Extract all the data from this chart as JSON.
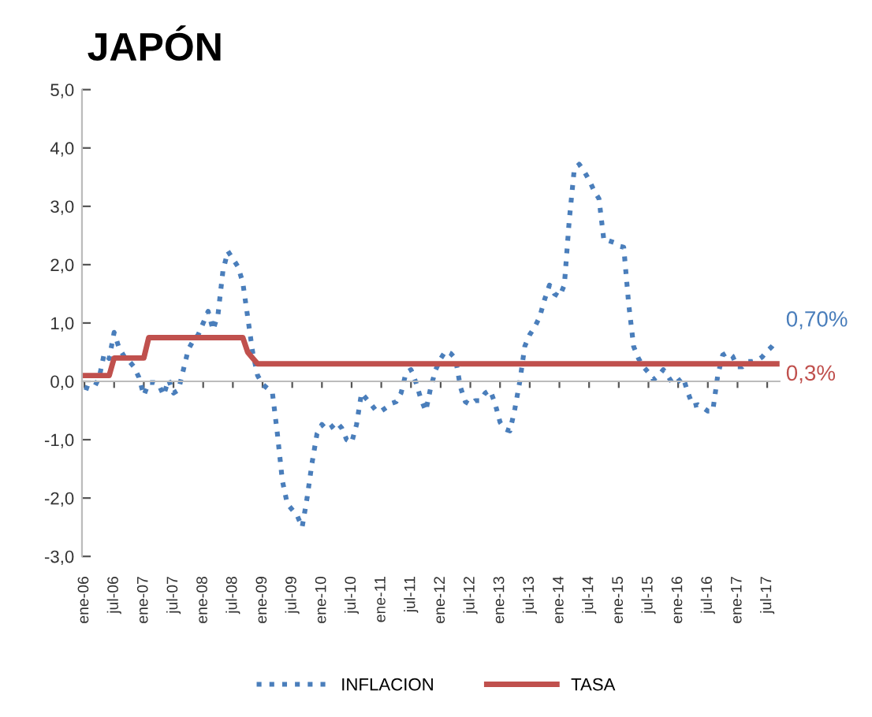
{
  "chart_data": {
    "type": "line",
    "title": "JAPÓN",
    "categories": [
      "ene-06",
      null,
      null,
      null,
      null,
      null,
      "jul-06",
      null,
      null,
      null,
      null,
      null,
      "ene-07",
      null,
      null,
      null,
      null,
      null,
      "jul-07",
      null,
      null,
      null,
      null,
      null,
      "ene-08",
      null,
      null,
      null,
      null,
      null,
      "jul-08",
      null,
      null,
      null,
      null,
      null,
      "ene-09",
      null,
      null,
      null,
      null,
      null,
      "jul-09",
      null,
      null,
      null,
      null,
      null,
      "ene-10",
      null,
      null,
      null,
      null,
      null,
      "jul-10",
      null,
      null,
      null,
      null,
      null,
      "ene-11",
      null,
      null,
      null,
      null,
      null,
      "jul-11",
      null,
      null,
      null,
      null,
      null,
      "ene-12",
      null,
      null,
      null,
      null,
      null,
      "jul-12",
      null,
      null,
      null,
      null,
      null,
      "ene-13",
      null,
      null,
      null,
      null,
      null,
      "jul-13",
      null,
      null,
      null,
      null,
      null,
      "ene-14",
      null,
      null,
      null,
      null,
      null,
      "jul-14",
      null,
      null,
      null,
      null,
      null,
      "ene-15",
      null,
      null,
      null,
      null,
      null,
      "jul-15",
      null,
      null,
      null,
      null,
      null,
      "ene-16",
      null,
      null,
      null,
      null,
      null,
      "jul-16",
      null,
      null,
      null,
      null,
      null,
      "ene-17",
      null,
      null,
      null,
      null,
      null,
      "jul-17",
      null,
      null
    ],
    "series": [
      {
        "name": "INFLACION",
        "color": "#4a7ebb",
        "line_style": "dotted",
        "value_labels": [
          null,
          null,
          null,
          null,
          null,
          null,
          null,
          null,
          null,
          null,
          null,
          null,
          null,
          null,
          null,
          null,
          null,
          null,
          null,
          null,
          null,
          null,
          null,
          null,
          null,
          null,
          null,
          null,
          null,
          null,
          null,
          null,
          null,
          null,
          null,
          null,
          null,
          null,
          null,
          null,
          null,
          null,
          null,
          null,
          null,
          null,
          null,
          null,
          null,
          null,
          null,
          null,
          null,
          null,
          null,
          null,
          null,
          null,
          null,
          null,
          null,
          null,
          null,
          null,
          null,
          null,
          null,
          null,
          null,
          null,
          null,
          null,
          null,
          null,
          null,
          null,
          null,
          null,
          null,
          null,
          null,
          null,
          null,
          null,
          null,
          null,
          null,
          null,
          null,
          null,
          null,
          null,
          null,
          null,
          null,
          null,
          null,
          null,
          null,
          null,
          null,
          null,
          null,
          null,
          null,
          null,
          null,
          null,
          null,
          null,
          null,
          null,
          null,
          null,
          null,
          null,
          null,
          null,
          null,
          null,
          null,
          null,
          null,
          null,
          null,
          null,
          null,
          null,
          null,
          null,
          null,
          null,
          null,
          null,
          null,
          null,
          null,
          null,
          null,
          null,
          "0,70%"
        ],
        "values": [
          -0.1,
          -0.13,
          -0.1,
          0.07,
          0.48,
          0.39,
          0.84,
          0.57,
          0.43,
          0.35,
          0.25,
          0.07,
          -0.24,
          -0.02,
          -0.02,
          -0.05,
          -0.24,
          0.03,
          -0.2,
          -0.15,
          0.2,
          0.55,
          0.7,
          0.8,
          1.0,
          1.2,
          0.88,
          1.15,
          1.9,
          2.23,
          2.1,
          1.97,
          1.7,
          1.1,
          0.5,
          0.1,
          -0.05,
          -0.12,
          -0.2,
          -0.9,
          -1.7,
          -2.1,
          -2.2,
          -2.3,
          -2.5,
          -2.0,
          -1.4,
          -0.9,
          -0.74,
          -0.83,
          -0.78,
          -0.7,
          -0.8,
          -1.0,
          -1.05,
          -0.74,
          -0.2,
          -0.3,
          -0.4,
          -0.51,
          -0.51,
          -0.45,
          -0.38,
          -0.35,
          -0.2,
          0.15,
          0.2,
          -0.02,
          -0.3,
          -0.51,
          -0.1,
          0.2,
          0.39,
          0.52,
          0.48,
          0.39,
          -0.1,
          -0.35,
          -0.4,
          -0.33,
          -0.33,
          -0.2,
          -0.15,
          -0.38,
          -0.7,
          -0.82,
          -0.85,
          -0.47,
          0.0,
          0.6,
          0.8,
          0.93,
          1.1,
          1.4,
          1.65,
          1.5,
          1.45,
          1.65,
          2.77,
          3.63,
          3.72,
          3.6,
          3.45,
          3.27,
          3.13,
          2.41,
          2.41,
          2.38,
          2.32,
          2.3,
          1.33,
          0.6,
          0.39,
          0.25,
          0.15,
          0.03,
          0.1,
          0.2,
          0.08,
          -0.05,
          0.0,
          0.07,
          -0.2,
          -0.42,
          -0.4,
          -0.45,
          -0.51,
          -0.51,
          0.1,
          0.45,
          0.5,
          0.43,
          0.25,
          0.25,
          0.34,
          0.34,
          0.36,
          0.42,
          0.52,
          0.6,
          0.7
        ]
      },
      {
        "name": "TASA",
        "color": "#c0504d",
        "line_style": "solid",
        "value_labels": [
          null,
          null,
          null,
          null,
          null,
          null,
          null,
          null,
          null,
          null,
          null,
          null,
          null,
          null,
          null,
          null,
          null,
          null,
          null,
          null,
          null,
          null,
          null,
          null,
          null,
          null,
          null,
          null,
          null,
          null,
          null,
          null,
          null,
          null,
          null,
          null,
          null,
          null,
          null,
          null,
          null,
          null,
          null,
          null,
          null,
          null,
          null,
          null,
          null,
          null,
          null,
          null,
          null,
          null,
          null,
          null,
          null,
          null,
          null,
          null,
          null,
          null,
          null,
          null,
          null,
          null,
          null,
          null,
          null,
          null,
          null,
          null,
          null,
          null,
          null,
          null,
          null,
          null,
          null,
          null,
          null,
          null,
          null,
          null,
          null,
          null,
          null,
          null,
          null,
          null,
          null,
          null,
          null,
          null,
          null,
          null,
          null,
          null,
          null,
          null,
          null,
          null,
          null,
          null,
          null,
          null,
          null,
          null,
          null,
          null,
          null,
          null,
          null,
          null,
          null,
          null,
          null,
          null,
          null,
          null,
          null,
          null,
          null,
          null,
          null,
          null,
          null,
          null,
          null,
          null,
          null,
          null,
          null,
          null,
          null,
          null,
          null,
          null,
          null,
          null,
          "0,3%"
        ],
        "values": [
          0.1,
          0.1,
          0.1,
          0.1,
          0.1,
          0.1,
          0.4,
          0.4,
          0.4,
          0.4,
          0.4,
          0.4,
          0.4,
          0.75,
          0.75,
          0.75,
          0.75,
          0.75,
          0.75,
          0.75,
          0.75,
          0.75,
          0.75,
          0.75,
          0.75,
          0.75,
          0.75,
          0.75,
          0.75,
          0.75,
          0.75,
          0.75,
          0.75,
          0.5,
          0.4,
          0.3,
          0.3,
          0.3,
          0.3,
          0.3,
          0.3,
          0.3,
          0.3,
          0.3,
          0.3,
          0.3,
          0.3,
          0.3,
          0.3,
          0.3,
          0.3,
          0.3,
          0.3,
          0.3,
          0.3,
          0.3,
          0.3,
          0.3,
          0.3,
          0.3,
          0.3,
          0.3,
          0.3,
          0.3,
          0.3,
          0.3,
          0.3,
          0.3,
          0.3,
          0.3,
          0.3,
          0.3,
          0.3,
          0.3,
          0.3,
          0.3,
          0.3,
          0.3,
          0.3,
          0.3,
          0.3,
          0.3,
          0.3,
          0.3,
          0.3,
          0.3,
          0.3,
          0.3,
          0.3,
          0.3,
          0.3,
          0.3,
          0.3,
          0.3,
          0.3,
          0.3,
          0.3,
          0.3,
          0.3,
          0.3,
          0.3,
          0.3,
          0.3,
          0.3,
          0.3,
          0.3,
          0.3,
          0.3,
          0.3,
          0.3,
          0.3,
          0.3,
          0.3,
          0.3,
          0.3,
          0.3,
          0.3,
          0.3,
          0.3,
          0.3,
          0.3,
          0.3,
          0.3,
          0.3,
          0.3,
          0.3,
          0.3,
          0.3,
          0.3,
          0.3,
          0.3,
          0.3,
          0.3,
          0.3,
          0.3,
          0.3,
          0.3,
          0.3,
          0.3,
          0.3,
          0.3
        ]
      }
    ],
    "ylim": [
      -3,
      5
    ],
    "yticks": [
      {
        "value": -3,
        "label": "-3,0"
      },
      {
        "value": -2,
        "label": "-2,0"
      },
      {
        "value": -1,
        "label": "-1,0"
      },
      {
        "value": 0,
        "label": "0,0"
      },
      {
        "value": 1,
        "label": "1,0"
      },
      {
        "value": 2,
        "label": "2,0"
      },
      {
        "value": 3,
        "label": "3,0"
      },
      {
        "value": 4,
        "label": "4,0"
      },
      {
        "value": 5,
        "label": "5,0"
      }
    ],
    "legend": "bottom",
    "marker": "none"
  }
}
